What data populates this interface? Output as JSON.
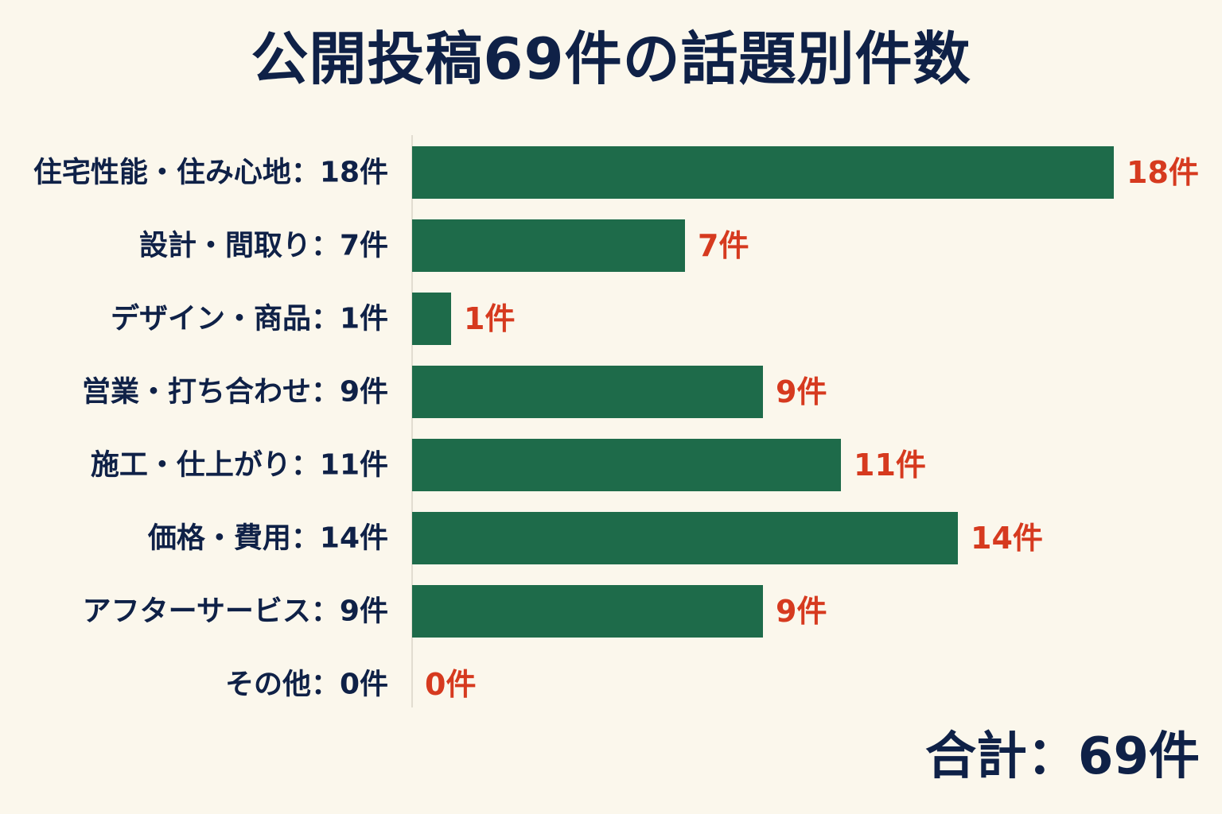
{
  "title": "公開投稿69件の話題別件数",
  "total_label": "合計：69件",
  "colors": {
    "bar": "#1e6b4a",
    "value": "#d63a1f",
    "text": "#0f2147",
    "axis": "#e2ddd0"
  },
  "chart_data": {
    "type": "bar",
    "orientation": "horizontal",
    "title": "公開投稿69件の話題別件数",
    "categories": [
      "住宅性能・住み心地：18件",
      "設計・間取り：7件",
      "デザイン・商品：1件",
      "営業・打ち合わせ：9件",
      "施工・仕上がり：11件",
      "価格・費用：14件",
      "アフターサービス：9件",
      "その他：0件"
    ],
    "values": [
      18,
      7,
      1,
      9,
      11,
      14,
      9,
      0
    ],
    "value_labels": [
      "18件",
      "7件",
      "1件",
      "9件",
      "11件",
      "14件",
      "9件",
      "0件"
    ],
    "xlim": [
      0,
      18
    ],
    "grid": false,
    "legend": "none"
  }
}
